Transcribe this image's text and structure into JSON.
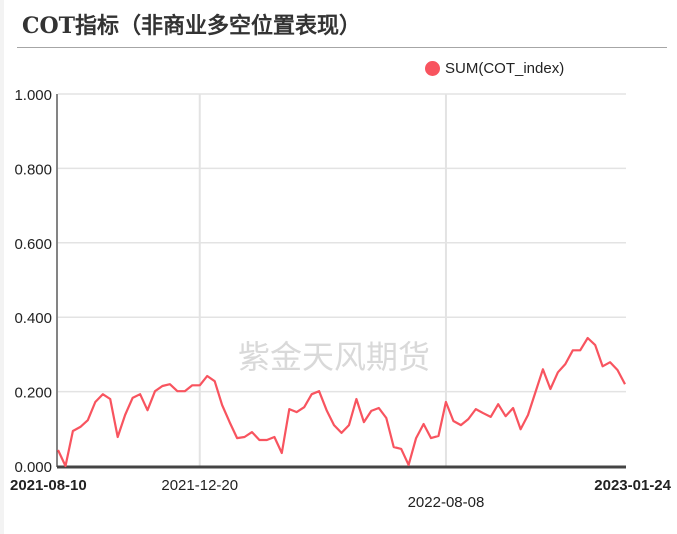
{
  "title": "COT指标（非商业多空位置表现）",
  "watermark": "紫金天风期货",
  "legend": {
    "label": "SUM(COT_index)",
    "color": "#f8545f"
  },
  "chart_data": {
    "type": "line",
    "title": "COT指标（非商业多空位置表现）",
    "xlabel": "",
    "ylabel": "",
    "ylim": [
      0,
      1
    ],
    "yticks": [
      "0.000",
      "0.200",
      "0.400",
      "0.600",
      "0.800",
      "1.000"
    ],
    "xtick_labels": [
      {
        "label": "2021-08-10",
        "index": 0,
        "bold": true,
        "row": 0
      },
      {
        "label": "2021-12-20",
        "index": 19,
        "bold": false,
        "row": 0
      },
      {
        "label": "2022-08-08",
        "index": 52,
        "bold": false,
        "row": 1
      },
      {
        "label": "2023-01-24",
        "index": 76,
        "bold": true,
        "row": 0
      }
    ],
    "grid": true,
    "legend_position": "top-right",
    "series": [
      {
        "name": "SUM(COT_index)",
        "color": "#f8545f",
        "values": [
          0.043,
          0.0,
          0.094,
          0.105,
          0.123,
          0.172,
          0.193,
          0.18,
          0.078,
          0.137,
          0.183,
          0.193,
          0.15,
          0.201,
          0.215,
          0.22,
          0.201,
          0.201,
          0.217,
          0.217,
          0.242,
          0.228,
          0.164,
          0.118,
          0.075,
          0.078,
          0.091,
          0.07,
          0.07,
          0.078,
          0.035,
          0.153,
          0.145,
          0.158,
          0.193,
          0.201,
          0.15,
          0.11,
          0.089,
          0.11,
          0.18,
          0.118,
          0.148,
          0.156,
          0.129,
          0.051,
          0.046,
          0.003,
          0.075,
          0.113,
          0.075,
          0.081,
          0.172,
          0.121,
          0.11,
          0.126,
          0.153,
          0.142,
          0.132,
          0.166,
          0.134,
          0.156,
          0.099,
          0.137,
          0.199,
          0.26,
          0.207,
          0.252,
          0.274,
          0.311,
          0.311,
          0.344,
          0.325,
          0.268,
          0.279,
          0.258,
          0.22
        ]
      }
    ]
  }
}
